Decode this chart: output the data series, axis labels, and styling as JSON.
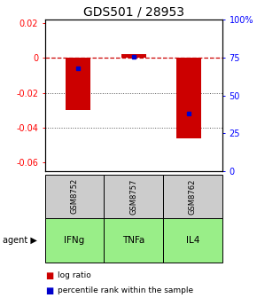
{
  "title": "GDS501 / 28953",
  "categories": [
    "IFNg",
    "TNFa",
    "IL4"
  ],
  "gsm_labels": [
    "GSM8752",
    "GSM8757",
    "GSM8762"
  ],
  "log_ratios": [
    -0.03,
    0.002,
    -0.046
  ],
  "percentile_ranks": [
    0.68,
    0.755,
    0.38
  ],
  "ylim_left": [
    -0.065,
    0.022
  ],
  "ylim_right": [
    0.0,
    1.0
  ],
  "yticks_left": [
    0.02,
    0.0,
    -0.02,
    -0.04,
    -0.06
  ],
  "yticks_right": [
    1.0,
    0.75,
    0.5,
    0.25,
    0.0
  ],
  "ytick_labels_left": [
    "0.02",
    "0",
    "-0.02",
    "-0.04",
    "-0.06"
  ],
  "ytick_labels_right": [
    "100%",
    "75",
    "50",
    "25",
    "0"
  ],
  "bar_color": "#cc0000",
  "dot_color": "#0000cc",
  "agent_color": "#99ee88",
  "gsm_color": "#cccccc",
  "bar_width": 0.45,
  "zero_line_color": "#cc0000",
  "grid_color": "#555555",
  "title_fontsize": 10,
  "axis_fontsize": 7,
  "legend_fontsize": 6.5
}
